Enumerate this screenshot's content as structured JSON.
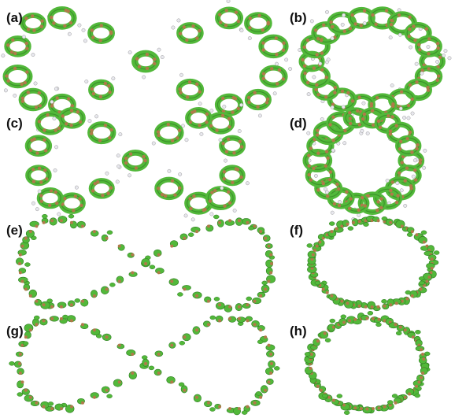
{
  "figure": {
    "panels": [
      {
        "label": "(a)",
        "surface": "isosurface-rings"
      },
      {
        "label": "(b)",
        "surface": "isosurface-rings"
      },
      {
        "label": "(c)",
        "surface": "isosurface-rings"
      },
      {
        "label": "(d)",
        "surface": "isosurface-rings"
      },
      {
        "label": "(e)",
        "surface": "isosurface-lobes"
      },
      {
        "label": "(f)",
        "surface": "isosurface-lobes"
      },
      {
        "label": "(g)",
        "surface": "isosurface-lobes"
      },
      {
        "label": "(h)",
        "surface": "isosurface-lobes"
      }
    ],
    "colors": {
      "isosurface": "#52b83a",
      "isosurface_dark": "#2f7d22",
      "carbon_atom": "#b07a4a",
      "hydrogen_atom": "#e8e8ee",
      "background": "#ffffff"
    }
  }
}
